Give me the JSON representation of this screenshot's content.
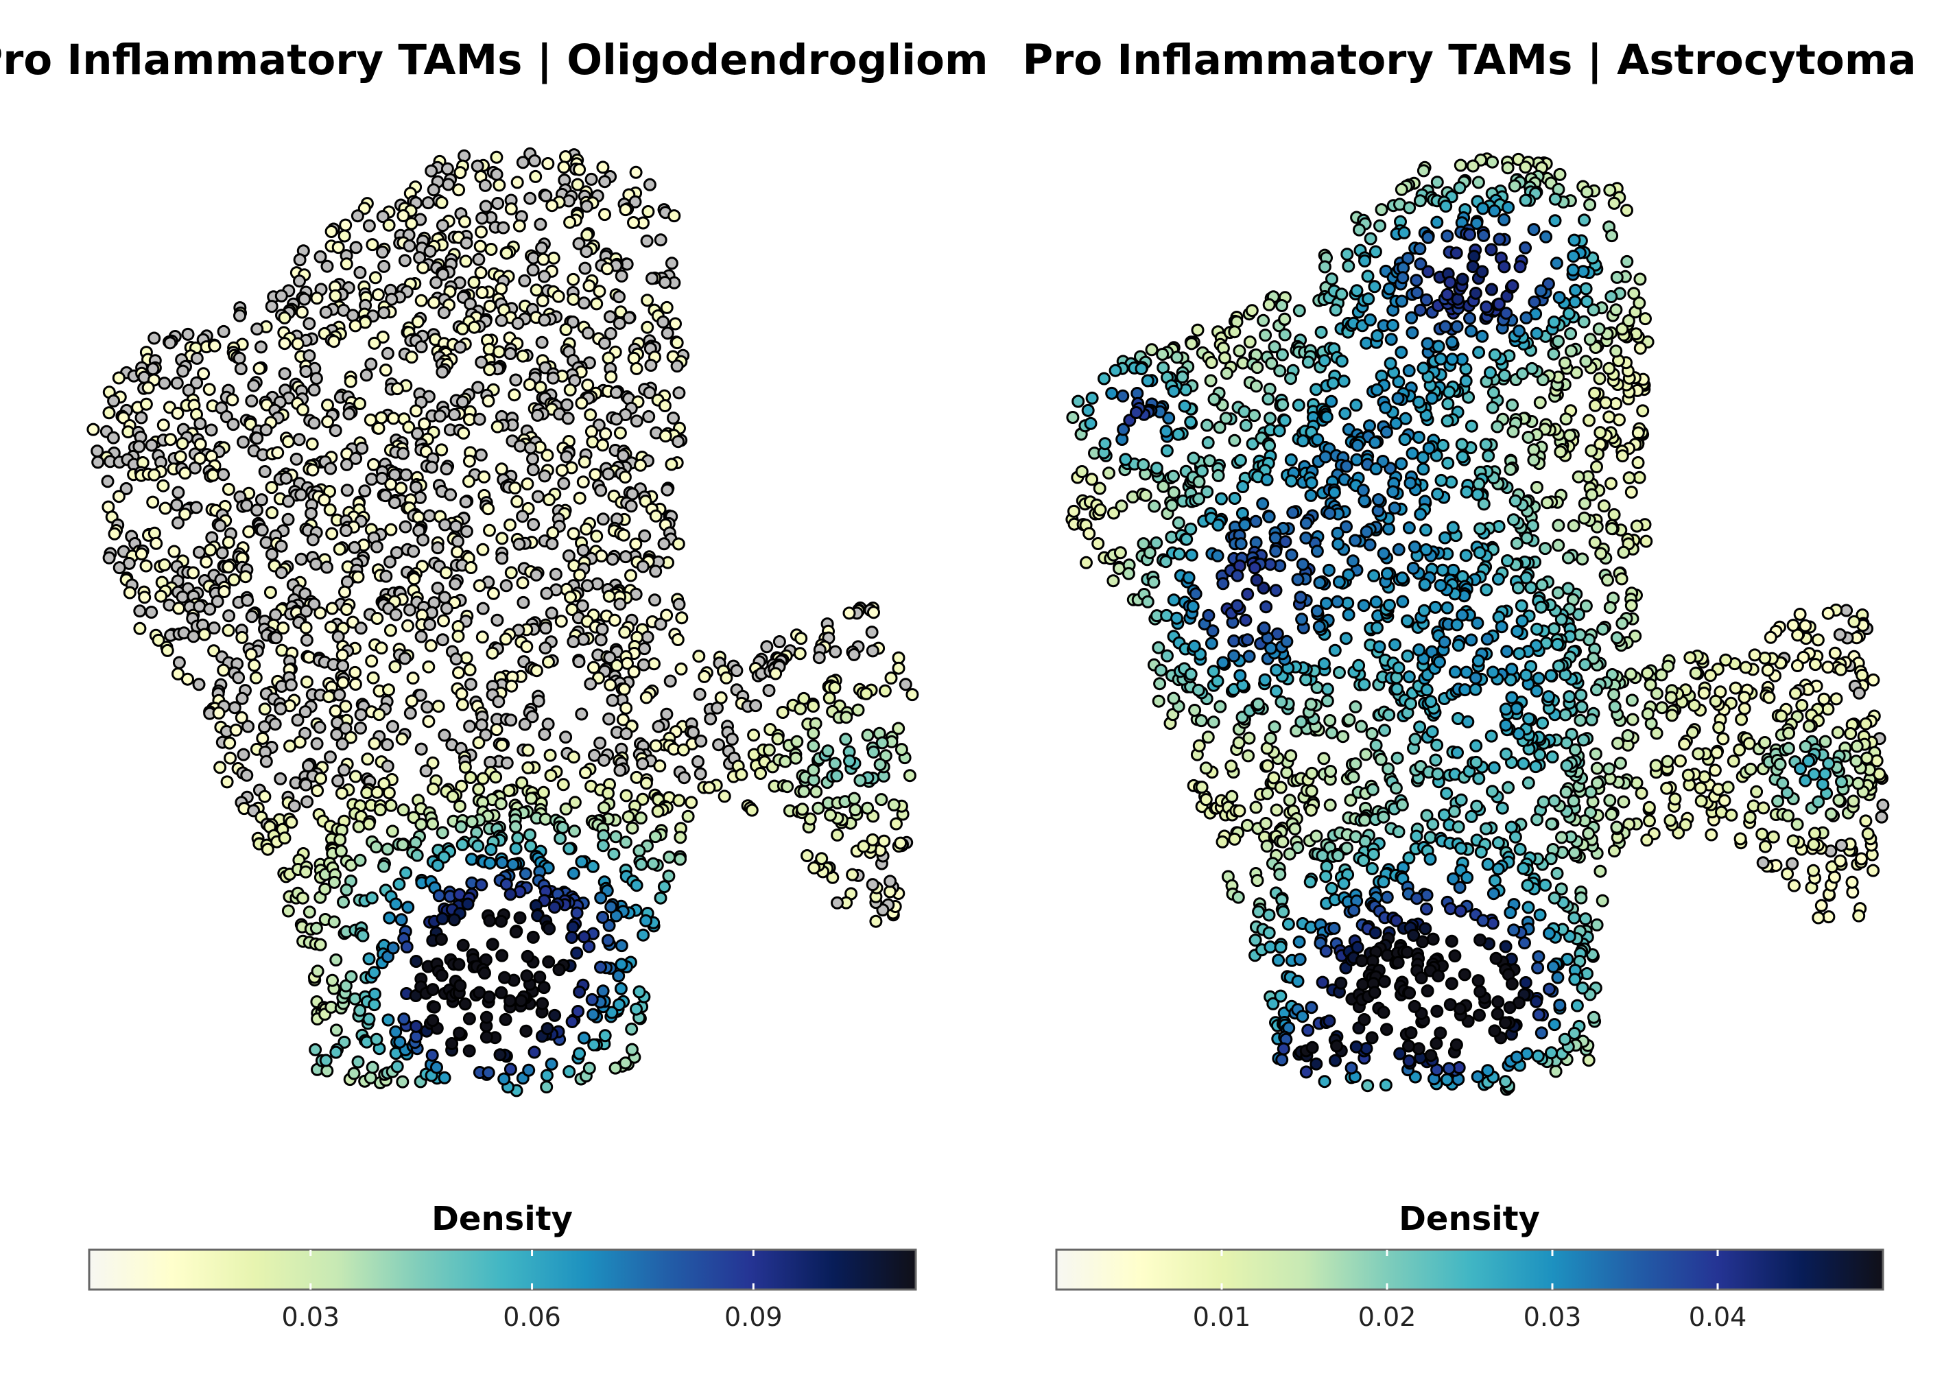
{
  "chart_data": [
    {
      "type": "scatter",
      "title": "Pro Inflammatory TAMs | Oligodendrogliom",
      "legend": {
        "title": "Density",
        "placement": "bottom",
        "range": [
          0,
          0.112
        ],
        "ticks": [
          0.03,
          0.06,
          0.09
        ],
        "tick_labels": [
          "0.03",
          "0.06",
          "0.09"
        ]
      },
      "background_color": "#bebebe",
      "density_peak": {
        "region": "bottom-center",
        "max_value": 0.11
      },
      "grid": false,
      "axes_visible": false
    },
    {
      "type": "scatter",
      "title": "Pro Inflammatory TAMs | Astrocytoma",
      "legend": {
        "title": "Density",
        "placement": "bottom",
        "range": [
          0,
          0.05
        ],
        "ticks": [
          0.01,
          0.02,
          0.03,
          0.04
        ],
        "tick_labels": [
          "0.01",
          "0.02",
          "0.03",
          "0.04"
        ]
      },
      "background_color": "#bebebe",
      "density_peak": {
        "region": "bottom-center",
        "max_value": 0.049
      },
      "grid": false,
      "axes_visible": false
    }
  ],
  "colormap": [
    "#f7f7f2",
    "#ffffcc",
    "#e7f4b0",
    "#c7e9b4",
    "#7fcdbb",
    "#41b6c4",
    "#1d91c0",
    "#225ea8",
    "#253494",
    "#081d58",
    "#101018"
  ]
}
